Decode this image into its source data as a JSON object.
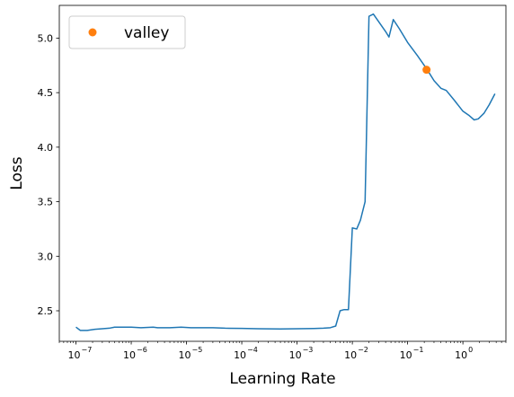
{
  "chart_data": {
    "type": "line",
    "title": "",
    "xlabel": "Learning Rate",
    "ylabel": "Loss",
    "xscale": "log",
    "xlim": [
      5e-08,
      6
    ],
    "ylim": [
      2.22,
      5.3
    ],
    "grid": false,
    "legend_placement": "top-left",
    "x_ticks": [
      {
        "value": 1e-07,
        "base": "10",
        "exp": "−7"
      },
      {
        "value": 1e-06,
        "base": "10",
        "exp": "−6"
      },
      {
        "value": 1e-05,
        "base": "10",
        "exp": "−5"
      },
      {
        "value": 0.0001,
        "base": "10",
        "exp": "−4"
      },
      {
        "value": 0.001,
        "base": "10",
        "exp": "−3"
      },
      {
        "value": 0.01,
        "base": "10",
        "exp": "−2"
      },
      {
        "value": 0.1,
        "base": "10",
        "exp": "−1"
      },
      {
        "value": 1,
        "base": "10",
        "exp": "0"
      }
    ],
    "y_ticks": [
      {
        "value": 2.5,
        "label": "2.5"
      },
      {
        "value": 3.0,
        "label": "3.0"
      },
      {
        "value": 3.5,
        "label": "3.5"
      },
      {
        "value": 4.0,
        "label": "4.0"
      },
      {
        "value": 4.5,
        "label": "4.5"
      },
      {
        "value": 5.0,
        "label": "5.0"
      }
    ],
    "series": [
      {
        "color": "#1f77b4",
        "points": [
          [
            1e-07,
            2.35
          ],
          [
            1.2e-07,
            2.32
          ],
          [
            1.6e-07,
            2.32
          ],
          [
            2.2e-07,
            2.33
          ],
          [
            3e-07,
            2.335
          ],
          [
            4e-07,
            2.34
          ],
          [
            5e-07,
            2.35
          ],
          [
            7e-07,
            2.35
          ],
          [
            1e-06,
            2.35
          ],
          [
            1.5e-06,
            2.345
          ],
          [
            2.5e-06,
            2.35
          ],
          [
            3e-06,
            2.345
          ],
          [
            5e-06,
            2.345
          ],
          [
            8e-06,
            2.35
          ],
          [
            1.2e-05,
            2.345
          ],
          [
            2e-05,
            2.345
          ],
          [
            3e-05,
            2.345
          ],
          [
            5e-05,
            2.34
          ],
          [
            0.0001,
            2.338
          ],
          [
            0.0002,
            2.335
          ],
          [
            0.0005,
            2.333
          ],
          [
            0.001,
            2.335
          ],
          [
            0.002,
            2.337
          ],
          [
            0.003,
            2.34
          ],
          [
            0.004,
            2.345
          ],
          [
            0.005,
            2.36
          ],
          [
            0.006,
            2.5
          ],
          [
            0.007,
            2.51
          ],
          [
            0.008,
            2.51
          ],
          [
            0.0085,
            2.51
          ],
          [
            0.01,
            3.26
          ],
          [
            0.012,
            3.25
          ],
          [
            0.014,
            3.33
          ],
          [
            0.017,
            3.5
          ],
          [
            0.02,
            5.2
          ],
          [
            0.024,
            5.22
          ],
          [
            0.03,
            5.15
          ],
          [
            0.04,
            5.06
          ],
          [
            0.046,
            5.01
          ],
          [
            0.055,
            5.17
          ],
          [
            0.07,
            5.09
          ],
          [
            0.1,
            4.96
          ],
          [
            0.15,
            4.84
          ],
          [
            0.22,
            4.72
          ],
          [
            0.3,
            4.61
          ],
          [
            0.4,
            4.54
          ],
          [
            0.5,
            4.52
          ],
          [
            0.7,
            4.43
          ],
          [
            1,
            4.33
          ],
          [
            1.3,
            4.29
          ],
          [
            1.6,
            4.25
          ],
          [
            1.9,
            4.26
          ],
          [
            2.4,
            4.31
          ],
          [
            3,
            4.39
          ],
          [
            3.8,
            4.49
          ]
        ]
      }
    ],
    "valley_point": {
      "name": "valley",
      "x": 0.22,
      "y": 4.71,
      "color": "#ff7f0e"
    }
  }
}
